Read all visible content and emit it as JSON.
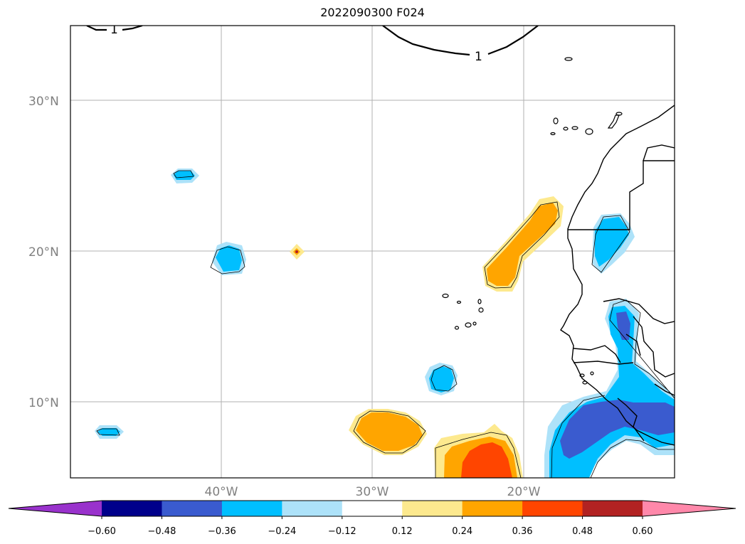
{
  "title": "2022090300 F024",
  "map": {
    "lat_labels": [
      "30°N",
      "20°N",
      "10°N"
    ],
    "lon_labels": [
      "40°W",
      "30°W",
      "20°W"
    ],
    "contour_label": "1"
  },
  "colorbar": {
    "colors": [
      "#9932cc",
      "#00008b",
      "#3a5bcf",
      "#00bfff",
      "#ade2f9",
      "#ffffff",
      "#fde98e",
      "#ffa500",
      "#ff4500",
      "#b22222",
      "#ff88aa"
    ],
    "ticks": [
      "−0.60",
      "−0.48",
      "−0.36",
      "−0.24",
      "−0.12",
      "0.12",
      "0.24",
      "0.36",
      "0.48",
      "0.60"
    ]
  }
}
